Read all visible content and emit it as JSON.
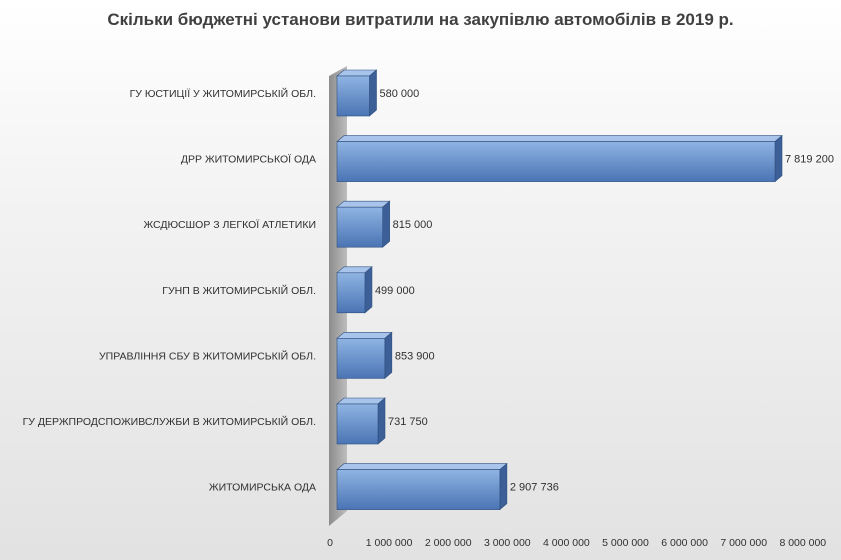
{
  "chart_data": {
    "type": "bar",
    "orientation": "horizontal",
    "title": "Скільки бюджетні установи витратили на закупівлю автомобілів в 2019 р.",
    "categories": [
      "ГУ ЮСТИЦІЇ У ЖИТОМИРСЬКІЙ ОБЛ.",
      "ДРР ЖИТОМИРСЬКОЇ ОДА",
      "ЖСДЮСШОР З ЛЕГКОЇ АТЛЕТИКИ",
      "ГУНП В ЖИТОМИРСЬКІЙ ОБЛ.",
      "УПРАВЛІННЯ СБУ В ЖИТОМИРСЬКІЙ ОБЛ.",
      "ГУ ДЕРЖПРОДСПОЖИВСЛУЖБИ В ЖИТОМИРСЬКІЙ ОБЛ.",
      "ЖИТОМИРСЬКА ОДА"
    ],
    "values": [
      580000,
      7819200,
      815000,
      499000,
      853900,
      731750,
      2907736
    ],
    "value_labels": [
      "580 000",
      "7 819 200",
      "815 000",
      "499 000",
      "853 900",
      "731 750",
      "2 907 736"
    ],
    "xlim": [
      0,
      8000000
    ],
    "x_ticks": [
      0,
      1000000,
      2000000,
      3000000,
      4000000,
      5000000,
      6000000,
      7000000,
      8000000
    ],
    "x_tick_labels": [
      "0",
      "1 000 000",
      "2 000 000",
      "3 000 000",
      "4 000 000",
      "5 000 000",
      "6 000 000",
      "7 000 000",
      "8 000 000"
    ],
    "grid": false,
    "legend": "none",
    "style": "3d",
    "colors": {
      "bar_front_top": "#8fb4e3",
      "bar_front_bottom": "#4a74b4",
      "bar_top": "#a9c4ea",
      "bar_side": "#3b5f96",
      "bar_edge": "#2f4f80",
      "wall": "#a6a6a6"
    }
  }
}
